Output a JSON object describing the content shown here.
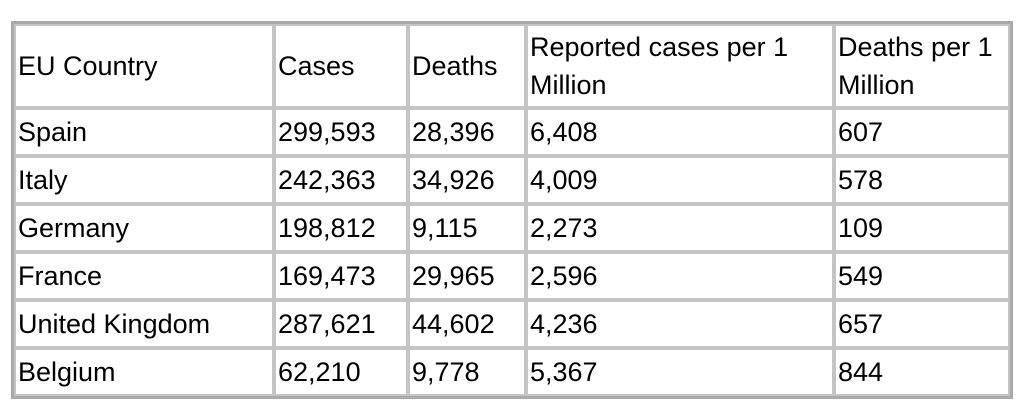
{
  "table": {
    "headers": [
      "EU Country",
      "Cases",
      "Deaths",
      "Reported cases per 1 Million",
      "Deaths per 1 Million"
    ],
    "rows": [
      [
        "Spain",
        "299,593",
        "28,396",
        "6,408",
        "607"
      ],
      [
        "Italy",
        "242,363",
        "34,926",
        "4,009",
        "578"
      ],
      [
        "Germany",
        "198,812",
        "9,115",
        "2,273",
        "109"
      ],
      [
        "France",
        "169,473",
        "29,965",
        "2,596",
        "549"
      ],
      [
        "United Kingdom",
        "287,621",
        "44,602",
        "4,236",
        "657"
      ],
      [
        "Belgium",
        "62,210",
        "9,778",
        "5,367",
        "844"
      ]
    ]
  }
}
